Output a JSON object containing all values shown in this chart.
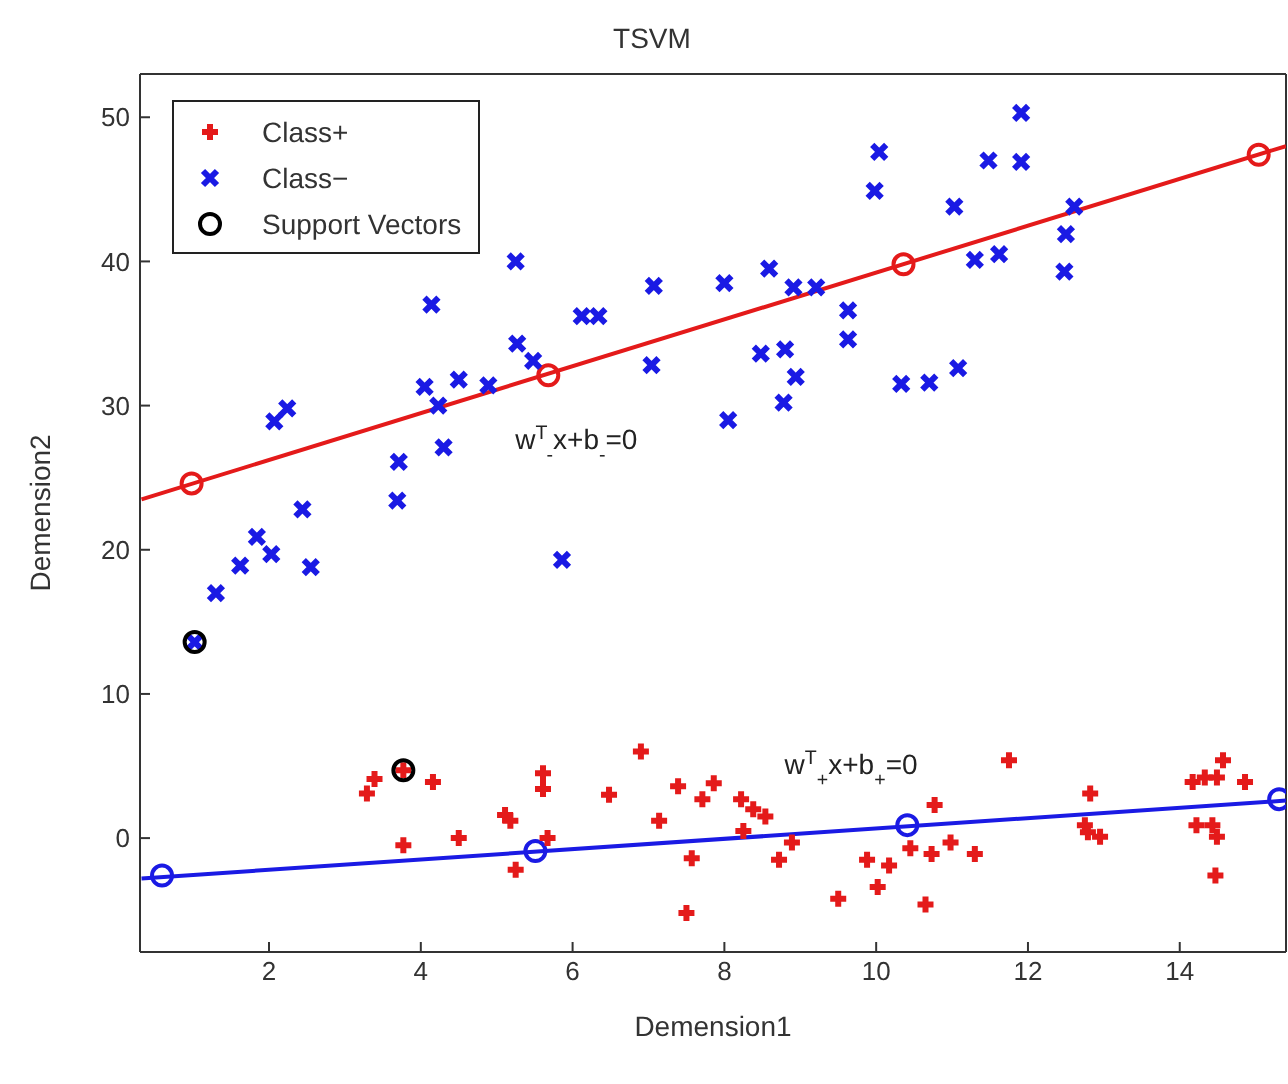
{
  "chart_data": {
    "type": "scatter",
    "title": "TSVM",
    "xlabel": "Demension1",
    "ylabel": "Demension2",
    "xlim": [
      0.3,
      15.4
    ],
    "ylim": [
      -7.9,
      53
    ],
    "xticks": [
      2,
      4,
      6,
      8,
      10,
      12,
      14
    ],
    "yticks": [
      0,
      10,
      20,
      30,
      40,
      50
    ],
    "legend": "top left",
    "annotations": [
      "w$^{T}$$_{-}$x+b$_{-}$=0",
      "w$^{T}$$_{+}$x+b$_{+}$=0"
    ],
    "series": [
      {
        "type": "line",
        "color": "#e41a1a",
        "marker": "none",
        "x": [
          0.32,
          15.4
        ],
        "values": [
          23.5,
          48.0
        ]
      },
      {
        "type": "line",
        "color": "#1a1ae4",
        "marker": "none",
        "x": [
          0.32,
          15.4
        ],
        "values": [
          -2.8,
          2.6
        ]
      },
      {
        "color": "#e41a1a",
        "marker": "circle",
        "x": [
          0.98,
          5.68,
          10.36,
          15.04
        ],
        "values": [
          24.6,
          32.1,
          39.8,
          47.4
        ]
      },
      {
        "color": "#1a1ae4",
        "marker": "circle",
        "x": [
          0.59,
          5.51,
          10.41,
          15.31
        ],
        "values": [
          -2.6,
          -0.9,
          0.9,
          2.7
        ]
      },
      {
        "name": "Class+",
        "color": "#e41a1a",
        "marker": "cross",
        "x": [
          3.77,
          3.29,
          3.39,
          4.16,
          3.77,
          4.5,
          5.11,
          5.18,
          5.25,
          5.61,
          5.61,
          5.67,
          6.48,
          6.9,
          7.14,
          7.39,
          7.57,
          7.5,
          7.71,
          7.86,
          8.22,
          8.38,
          8.54,
          8.25,
          8.72,
          8.89,
          9.5,
          9.88,
          10.02,
          10.17,
          10.45,
          10.77,
          10.73,
          10.65,
          10.98,
          11.3,
          11.75,
          12.82,
          12.75,
          12.79,
          12.95,
          14.17,
          14.33,
          14.49,
          14.57,
          14.86,
          14.22,
          14.43,
          14.49,
          14.47
        ],
        "values": [
          4.7,
          3.1,
          4.1,
          3.9,
          -0.5,
          0.0,
          1.6,
          1.2,
          -2.2,
          4.5,
          3.4,
          0.0,
          3.0,
          6.0,
          1.2,
          3.6,
          -1.4,
          -5.2,
          2.7,
          3.8,
          2.7,
          2.0,
          1.5,
          0.5,
          -1.5,
          -0.3,
          -4.2,
          -1.5,
          -3.4,
          -1.9,
          -0.7,
          2.3,
          -1.1,
          -4.6,
          -0.3,
          -1.1,
          5.4,
          3.1,
          0.9,
          0.4,
          0.1,
          3.9,
          4.2,
          4.2,
          5.4,
          3.9,
          0.9,
          0.9,
          0.1,
          -2.6
        ]
      },
      {
        "name": "Class−",
        "color": "#1a1ae4",
        "marker": "x",
        "x": [
          1.02,
          11.91,
          10.04,
          9.98,
          11.48,
          11.91,
          11.03,
          12.61,
          12.5,
          12.48,
          11.3,
          11.62,
          5.25,
          4.14,
          7.07,
          8.0,
          8.59,
          8.91,
          9.21,
          9.63,
          9.63,
          6.12,
          6.34,
          5.27,
          5.48,
          7.04,
          8.48,
          8.8,
          8.94,
          8.78,
          8.05,
          10.33,
          10.7,
          11.08,
          4.05,
          4.23,
          4.5,
          4.89,
          4.3,
          3.71,
          3.69,
          2.07,
          2.24,
          2.44,
          1.84,
          1.3,
          1.62,
          2.03,
          2.55,
          5.86
        ],
        "values": [
          13.6,
          50.3,
          47.6,
          44.9,
          47.0,
          46.9,
          43.8,
          43.8,
          41.9,
          39.3,
          40.1,
          40.5,
          40.0,
          37.0,
          38.3,
          38.5,
          39.5,
          38.2,
          38.2,
          36.6,
          34.6,
          36.2,
          36.2,
          34.3,
          33.1,
          32.8,
          33.6,
          33.9,
          32.0,
          30.2,
          29.0,
          31.5,
          31.6,
          32.6,
          31.3,
          30.0,
          31.8,
          31.4,
          27.1,
          26.1,
          23.4,
          28.9,
          29.8,
          22.8,
          20.9,
          17.0,
          18.9,
          19.7,
          18.8,
          19.3
        ]
      },
      {
        "name": "Support Vectors",
        "color": "#000000",
        "marker": "circle",
        "x": [
          1.02,
          3.77
        ],
        "values": [
          13.6,
          4.7
        ]
      }
    ]
  }
}
